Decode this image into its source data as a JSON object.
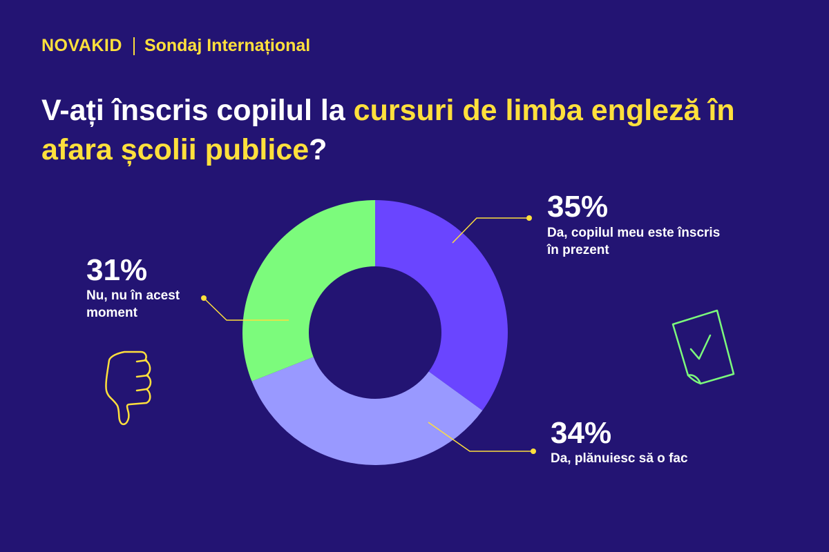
{
  "brand": {
    "logo_text": "NOVAKID",
    "subtitle": "Sondaj Internațional"
  },
  "title": {
    "part1": "V-ați înscris copilul la ",
    "highlight": "cursuri de limba engleză în afara școlii publice",
    "part2": "?"
  },
  "colors": {
    "background": "#231473",
    "accent": "#FFE03C",
    "slice_yes_now": "#6A45FF",
    "slice_yes_plan": "#9999FF",
    "slice_no": "#7CFB7C"
  },
  "chart_data": {
    "type": "pie",
    "style": "donut",
    "title": "V-ați înscris copilul la cursuri de limba engleză în afara școlii publice?",
    "slices": [
      {
        "label": "Da, copilul meu este înscris în prezent",
        "value": 35,
        "display": "35%",
        "color": "#6A45FF"
      },
      {
        "label": "Da, plănuiesc să o fac",
        "value": 34,
        "display": "34%",
        "color": "#9999FF"
      },
      {
        "label": "Nu, nu în acest moment",
        "value": 31,
        "display": "31%",
        "color": "#7CFB7C"
      }
    ]
  },
  "icons": {
    "left": "thumbs-down-icon",
    "right": "document-check-icon"
  }
}
